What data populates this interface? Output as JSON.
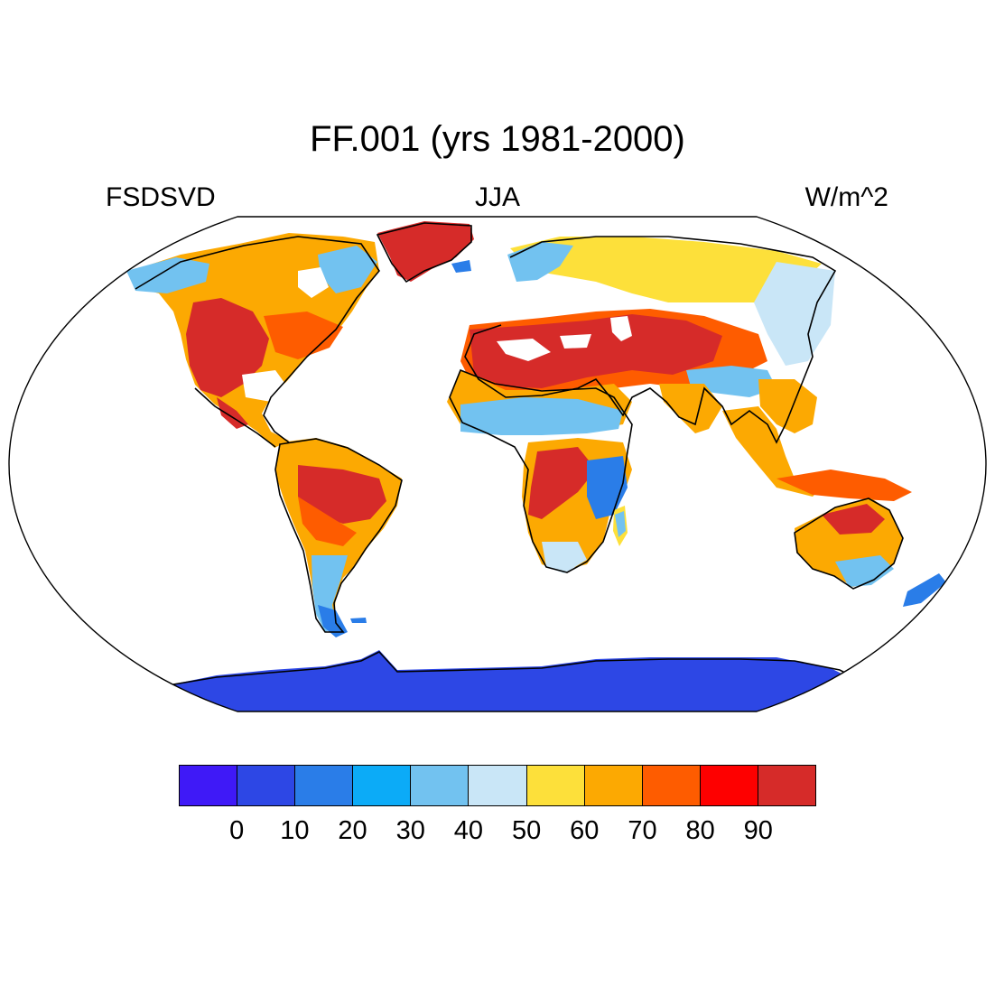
{
  "title": "FF.001 (yrs 1981-2000)",
  "left_string": "FSDSVD",
  "center_string": "JJA",
  "right_string": "W/m^2",
  "legend": {
    "colors": [
      "#3f19f7",
      "#2d47e5",
      "#2a7de8",
      "#0cabf7",
      "#72c2f0",
      "#c9e6f7",
      "#fde03a",
      "#fca902",
      "#fe5c00",
      "#fe0000",
      "#d62b29"
    ],
    "labels": [
      "0",
      "10",
      "20",
      "30",
      "40",
      "50",
      "60",
      "70",
      "80",
      "90"
    ]
  },
  "map": {
    "projection": "Robinson",
    "ocean_fill": "#ffffff",
    "outline_color": "#000000"
  }
}
